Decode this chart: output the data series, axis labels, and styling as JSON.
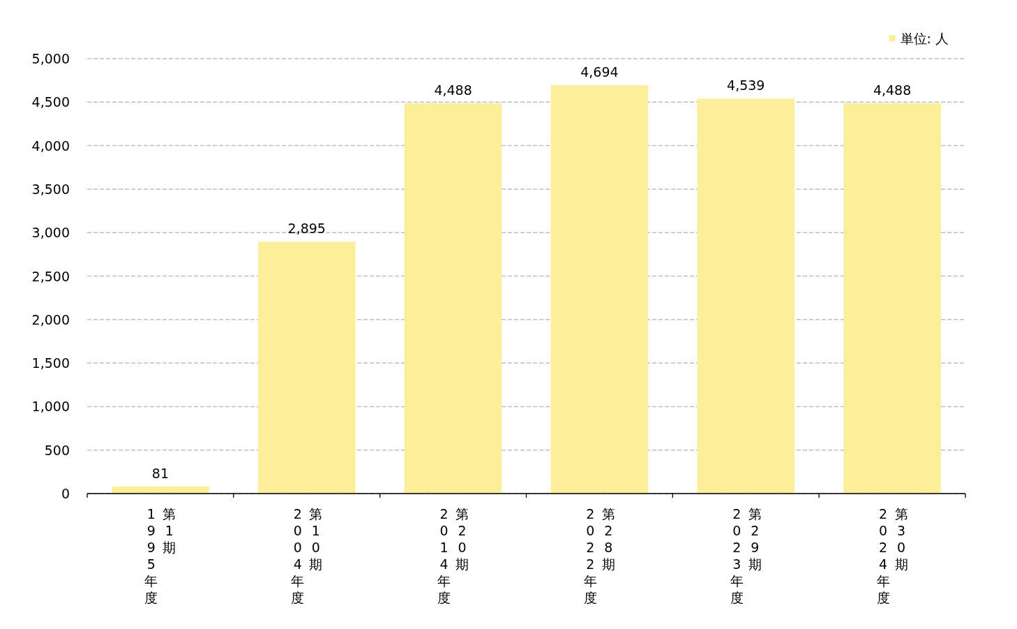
{
  "chart_data": {
    "type": "bar",
    "categories": [
      "1995年度第1期",
      "2004年度第10期",
      "2014年度第20期",
      "2022年度第28期",
      "2023年度第29期",
      "2024年度第30期"
    ],
    "series": [
      {
        "name": "単位: 人",
        "color": "#fdee99",
        "values": [
          81,
          2895,
          4488,
          4694,
          4539,
          4488
        ],
        "value_labels": [
          "81",
          "2,895",
          "4,488",
          "4,694",
          "4,539",
          "4,488"
        ]
      }
    ],
    "ylim": [
      0,
      5000
    ],
    "yticks": [
      0,
      500,
      {
        "value": 1000,
        "label": "1,000"
      },
      {
        "value": 1500,
        "label": "1,500"
      },
      {
        "value": 2000,
        "label": "2,000"
      },
      {
        "value": 2500,
        "label": "2,500"
      },
      {
        "value": 3000,
        "label": "3,000"
      },
      {
        "value": 3500,
        "label": "3,500"
      },
      {
        "value": 4000,
        "label": "4,000"
      },
      {
        "value": 4500,
        "label": "4,500"
      },
      {
        "value": 5000,
        "label": "5,000"
      }
    ],
    "grid": "y",
    "legend": "top right"
  }
}
